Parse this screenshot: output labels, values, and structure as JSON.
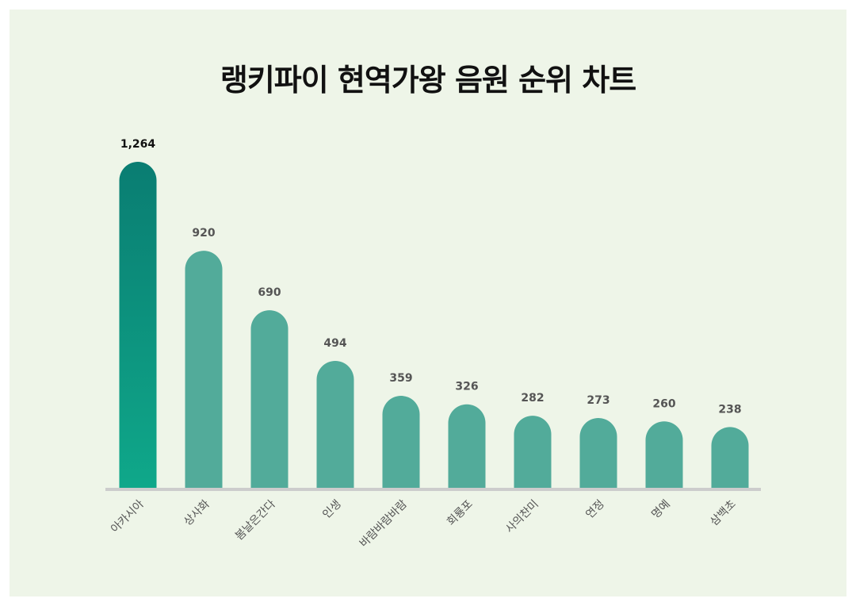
{
  "chart_data": {
    "type": "bar",
    "title": "랭키파이 현역가왕 음원 순위 차트",
    "xlabel": "",
    "ylabel": "",
    "categories": [
      "아카시아",
      "상사화",
      "봄날은간다",
      "인생",
      "바람바람바람",
      "회룡포",
      "사의찬미",
      "연정",
      "명예",
      "삼백초"
    ],
    "values": [
      1264,
      920,
      690,
      494,
      359,
      326,
      282,
      273,
      260,
      238
    ],
    "value_labels": [
      "1,264",
      "920",
      "690",
      "494",
      "359",
      "326",
      "282",
      "273",
      "260",
      "238"
    ],
    "ylim": [
      0,
      1264
    ],
    "grid": false,
    "legend": "none",
    "colors": {
      "background": "#eef5e8",
      "highlight_top": "#0a7d72",
      "highlight_bottom": "#0fa88a",
      "bar": "#52ab9a",
      "baseline": "#cccccc",
      "top_label": "#111111",
      "label": "#555555",
      "category_label": "#555555"
    }
  }
}
